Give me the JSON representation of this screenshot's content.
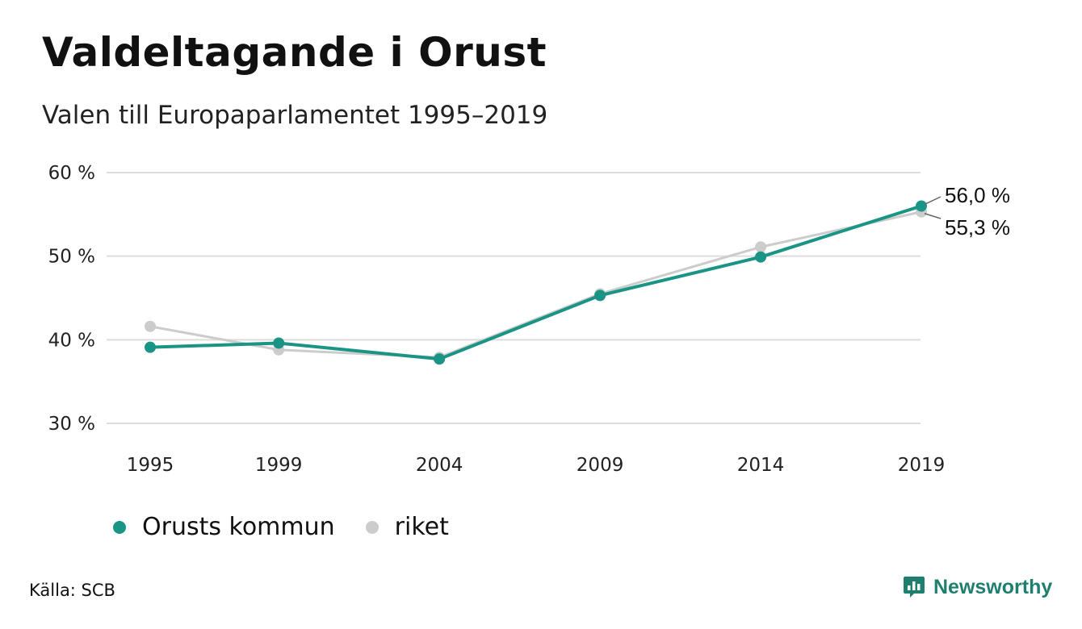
{
  "header": {
    "title": "Valdeltagande i Orust",
    "subtitle": "Valen till Europaparlamentet 1995–2019"
  },
  "chart_data": {
    "type": "line",
    "x": [
      "1995",
      "1999",
      "2004",
      "2009",
      "2014",
      "2019"
    ],
    "x_numeric": [
      1995,
      1999,
      2004,
      2009,
      2014,
      2019
    ],
    "ylim": [
      30,
      60
    ],
    "yticks": [
      30,
      40,
      50,
      60
    ],
    "ytick_labels": [
      "30 %",
      "40 %",
      "50 %",
      "60 %"
    ],
    "grid": true,
    "legend_position": "bottom-left",
    "series": [
      {
        "name": "riket",
        "values": [
          41.6,
          38.8,
          37.9,
          45.5,
          51.1,
          55.3
        ],
        "color": "#cccccc",
        "end_label": "55,3 %"
      },
      {
        "name": "Orusts kommun",
        "values": [
          39.1,
          39.6,
          37.7,
          45.3,
          49.9,
          56.0
        ],
        "color": "#1a9485",
        "end_label": "56,0 %"
      }
    ]
  },
  "legend": {
    "items": [
      {
        "label": "Orusts kommun",
        "color": "#1a9485"
      },
      {
        "label": "riket",
        "color": "#cccccc"
      }
    ]
  },
  "footer": {
    "source": "Källa: SCB",
    "brand": "Newsworthy",
    "brand_color": "#1f7f6f"
  }
}
